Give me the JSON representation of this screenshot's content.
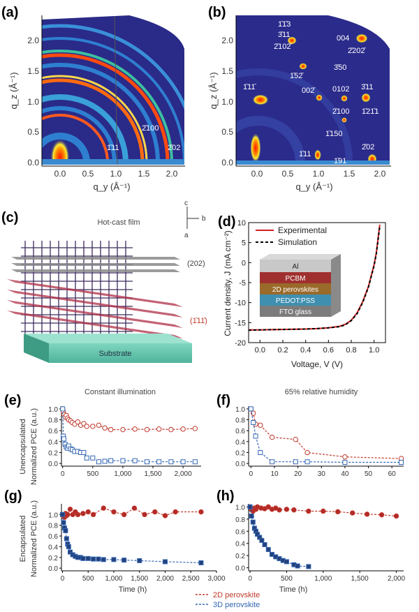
{
  "panel_letters": {
    "a": "(a)",
    "b": "(b)",
    "c": "(c)",
    "d": "(d)",
    "e": "(e)",
    "f": "(f)",
    "g": "(g)",
    "h": "(h)"
  },
  "colors": {
    "red": "#c0392b",
    "blue": "#3366b3",
    "map_bg": "#2a2a88",
    "map_mid": "#2e7fd0",
    "map_hot": "#ff2000"
  },
  "giwaxs_a": {
    "xlabel": "q_y (Å⁻¹)",
    "ylabel": "q_z (Å⁻¹)",
    "xticks": [
      "0.0",
      "0.5",
      "1.0",
      "1.5",
      "2.0"
    ],
    "yticks": [
      "0.0",
      "0.5",
      "1.0",
      "1.5",
      "2.0"
    ],
    "labels": [
      "2̄100",
      "1̄11",
      "2̄02"
    ]
  },
  "giwaxs_b": {
    "xlabel": "q_y (Å⁻¹)",
    "ylabel": "q_z (Å⁻¹)",
    "xticks": [
      "0.0",
      "0.5",
      "1.0",
      "1.5",
      "2.0"
    ],
    "yticks": [
      "0.0",
      "0.5",
      "1.0",
      "1.5",
      "2.0"
    ],
    "labels": [
      "1̄1̄3",
      "3̄11",
      "2̄102̄",
      "004",
      "2̄202̄",
      "1̄52̄",
      "3̄50",
      "1̄11̄",
      "002̄",
      "0102",
      "3̄11",
      "2̄100",
      "1̄21̄1",
      "1̄150",
      "2̄02",
      "1̄11",
      "1̄91"
    ]
  },
  "panel_c": {
    "title": "Hot-cast film",
    "substrate": "Substrate",
    "plane1": "(202)",
    "plane2": "(1̄11̄)",
    "axis_c": "c",
    "axis_b": "b",
    "axis_a": "a"
  },
  "chart_data": [
    {
      "id": "d",
      "type": "line",
      "xlabel": "Voltage, V (V)",
      "ylabel": "Current density, J (mA cm⁻²)",
      "xlim": [
        -0.1,
        1.1
      ],
      "ylim": [
        -20,
        10
      ],
      "xticks": [
        0.0,
        0.2,
        0.4,
        0.6,
        0.8,
        1.0
      ],
      "yticks": [
        -20,
        -15,
        -10,
        -5,
        0,
        5,
        10
      ],
      "series": [
        {
          "name": "Experimental",
          "style": "solid",
          "color": "#d02020",
          "x": [
            -0.1,
            0.0,
            0.2,
            0.4,
            0.5,
            0.6,
            0.7,
            0.75,
            0.8,
            0.85,
            0.9,
            0.95,
            1.0,
            1.02,
            1.05
          ],
          "y": [
            -16.8,
            -16.8,
            -16.7,
            -16.6,
            -16.5,
            -16.3,
            -15.9,
            -15.4,
            -14.4,
            -12.6,
            -9.8,
            -6.0,
            -0.5,
            2.5,
            9.5
          ]
        },
        {
          "name": "Simulation",
          "style": "dashed",
          "color": "#000000",
          "x": [
            -0.1,
            0.0,
            0.2,
            0.4,
            0.5,
            0.6,
            0.7,
            0.75,
            0.8,
            0.85,
            0.9,
            0.95,
            1.0,
            1.02,
            1.05
          ],
          "y": [
            -16.9,
            -16.8,
            -16.7,
            -16.6,
            -16.5,
            -16.3,
            -16.0,
            -15.5,
            -14.5,
            -12.8,
            -10.0,
            -6.2,
            -0.8,
            2.2,
            9.0
          ]
        }
      ],
      "inset_layers": [
        "Al",
        "PCBM",
        "2D perovskites",
        "PEDOT:PSS",
        "FTO glass"
      ]
    },
    {
      "id": "e",
      "type": "scatter",
      "title": "Constant illumination",
      "ylabel_outer": "Unencapsulated",
      "ylabel": "Normalized PCE (a.u.)",
      "xlim": [
        -20,
        2300
      ],
      "ylim": [
        -0.05,
        1.05
      ],
      "xticks": [
        "0",
        "500",
        "1,000",
        "1,500",
        "2,000"
      ],
      "xtick_values": [
        0,
        500,
        1000,
        1500,
        2000
      ],
      "yticks": [
        0.0,
        0.2,
        0.4,
        0.6,
        0.8,
        1.0
      ],
      "series": [
        {
          "name": "2D perovskite",
          "marker": "open-circle",
          "x": [
            0,
            10,
            20,
            40,
            60,
            80,
            100,
            130,
            160,
            200,
            250,
            300,
            350,
            400,
            500,
            600,
            700,
            800,
            1000,
            1200,
            1400,
            1600,
            1800,
            2000,
            2200
          ],
          "y": [
            1.0,
            0.95,
            0.9,
            0.85,
            0.88,
            0.83,
            0.8,
            0.78,
            0.75,
            0.72,
            0.76,
            0.7,
            0.73,
            0.68,
            0.68,
            0.7,
            0.65,
            0.62,
            0.62,
            0.63,
            0.62,
            0.63,
            0.62,
            0.63,
            0.64
          ]
        },
        {
          "name": "3D perovskite",
          "marker": "open-square",
          "x": [
            0,
            10,
            20,
            40,
            60,
            80,
            100,
            130,
            160,
            200,
            250,
            300,
            350,
            400,
            500,
            600,
            700,
            800,
            1000,
            1200,
            1400,
            1600,
            1800,
            2000,
            2200
          ],
          "y": [
            1.0,
            0.5,
            0.45,
            0.35,
            0.3,
            0.28,
            0.32,
            0.27,
            0.25,
            0.22,
            0.22,
            0.2,
            0.2,
            0.1,
            0.1,
            0.03,
            0.04,
            0.05,
            0.05,
            0.05,
            0.03,
            0.03,
            0.03,
            0.03,
            0.03
          ]
        }
      ]
    },
    {
      "id": "f",
      "type": "scatter",
      "title": "65% relative humidity",
      "xlim": [
        -1,
        65
      ],
      "ylim": [
        -0.05,
        1.05
      ],
      "xticks": [
        "0",
        "10",
        "20",
        "30",
        "40",
        "50",
        "60"
      ],
      "xtick_values": [
        0,
        10,
        20,
        30,
        40,
        50,
        60
      ],
      "yticks": [
        0.0,
        0.2,
        0.4,
        0.6,
        0.8,
        1.0
      ],
      "series": [
        {
          "name": "2D perovskite",
          "marker": "open-circle",
          "x": [
            0,
            1,
            2,
            4,
            9,
            19,
            24,
            40,
            64
          ],
          "y": [
            1.0,
            0.92,
            0.72,
            0.7,
            0.48,
            0.44,
            0.2,
            0.12,
            0.09
          ]
        },
        {
          "name": "3D perovskite",
          "marker": "open-square",
          "x": [
            0,
            1,
            2,
            4,
            9,
            19,
            24,
            40,
            64
          ],
          "y": [
            1.0,
            0.75,
            0.5,
            0.2,
            0.03,
            0.03,
            0.03,
            0.02,
            0.02
          ]
        }
      ]
    },
    {
      "id": "g",
      "type": "scatter",
      "ylabel_outer": "Encapsulated",
      "ylabel": "Normalized PCE (a.u.)",
      "xlabel": "Time (h)",
      "xlim": [
        -20,
        3000
      ],
      "ylim": [
        -0.05,
        1.2
      ],
      "xticks": [
        "0",
        "500",
        "1,000",
        "1,500",
        "2,000",
        "2,500",
        "3,000"
      ],
      "xtick_values": [
        0,
        500,
        1000,
        1500,
        2000,
        2500,
        3000
      ],
      "yticks": [
        0.0,
        0.2,
        0.4,
        0.6,
        0.8,
        1.0
      ],
      "series": [
        {
          "name": "2D perovskite",
          "marker": "filled-circle",
          "x": [
            0,
            20,
            40,
            60,
            80,
            100,
            150,
            200,
            250,
            300,
            400,
            500,
            600,
            800,
            1000,
            1200,
            1400,
            1600,
            1800,
            2000,
            2200,
            2700
          ],
          "y": [
            1.0,
            0.96,
            0.95,
            1.02,
            0.98,
            1.0,
            1.1,
            1.0,
            1.05,
            1.0,
            1.02,
            1.05,
            1.0,
            1.12,
            1.05,
            1.0,
            1.12,
            1.0,
            1.05,
            0.98,
            1.05,
            1.05
          ]
        },
        {
          "name": "3D perovskite",
          "marker": "filled-square",
          "x": [
            0,
            20,
            40,
            60,
            80,
            100,
            120,
            150,
            200,
            250,
            300,
            350,
            400,
            500,
            600,
            700,
            800,
            1000,
            1200,
            1500,
            2000,
            2700
          ],
          "y": [
            1.0,
            0.85,
            0.75,
            0.7,
            0.55,
            0.45,
            0.4,
            0.3,
            0.25,
            0.22,
            0.2,
            0.2,
            0.18,
            0.18,
            0.17,
            0.17,
            0.16,
            0.16,
            0.15,
            0.14,
            0.12,
            0.1
          ]
        }
      ]
    },
    {
      "id": "h",
      "type": "scatter",
      "xlabel": "Time (h)",
      "xlim": [
        -20,
        2100
      ],
      "ylim": [
        -0.05,
        1.05
      ],
      "xticks": [
        "0",
        "500",
        "1,000",
        "1,500",
        "2,000"
      ],
      "xtick_values": [
        0,
        500,
        1000,
        1500,
        2000
      ],
      "yticks": [
        0.0,
        0.2,
        0.4,
        0.6,
        0.8,
        1.0
      ],
      "series": [
        {
          "name": "2D perovskite",
          "marker": "filled-circle",
          "x": [
            0,
            20,
            40,
            60,
            80,
            100,
            150,
            200,
            250,
            300,
            350,
            400,
            500,
            600,
            800,
            1000,
            1200,
            1400,
            1600,
            1800,
            2000
          ],
          "y": [
            1.0,
            0.95,
            0.93,
            0.98,
            0.96,
            1.0,
            0.98,
            0.97,
            1.0,
            0.96,
            0.98,
            0.95,
            0.96,
            0.95,
            0.93,
            0.93,
            0.92,
            0.9,
            0.88,
            0.87,
            0.85
          ]
        },
        {
          "name": "3D perovskite",
          "marker": "filled-square",
          "x": [
            0,
            20,
            40,
            60,
            80,
            100,
            130,
            160,
            200,
            250,
            300,
            350,
            400,
            450,
            500,
            600,
            650,
            800
          ],
          "y": [
            1.0,
            0.85,
            0.75,
            0.65,
            0.6,
            0.55,
            0.5,
            0.45,
            0.38,
            0.3,
            0.22,
            0.18,
            0.15,
            0.12,
            0.1,
            0.05,
            0.03,
            0.02
          ]
        }
      ]
    }
  ],
  "legend": {
    "items": [
      "2D perovskite",
      "3D perovskite"
    ]
  }
}
